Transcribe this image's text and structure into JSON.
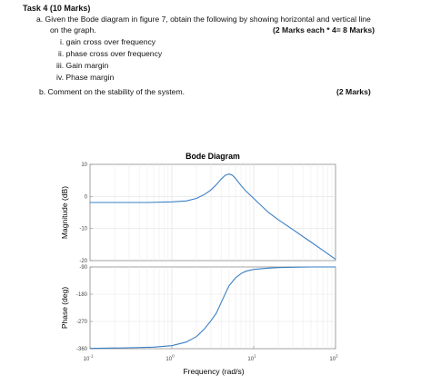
{
  "task": {
    "heading": "Task 4 (10 Marks)",
    "item_a_line1": "a. Given the Bode diagram in figure 7, obtain the following by showing horizontal and vertical line",
    "item_a_line2": "on the graph.",
    "item_a_marks": "(2 Marks each * 4= 8 Marks)",
    "sub_items": [
      "i. gain cross over frequency",
      "ii. phase cross over frequency",
      "iii. Gain margin",
      "iv. Phase margin"
    ],
    "item_b": "b.   Comment on the stability of the system.",
    "item_b_marks": "(2 Marks)"
  },
  "chart_data": {
    "type": "line",
    "title": "Bode Diagram",
    "xlabel": "Frequency  (rad/s)",
    "x_scale": "log",
    "xlim": [
      0.1,
      100
    ],
    "x_ticks": [
      {
        "base": "10",
        "exp": "-1"
      },
      {
        "base": "10",
        "exp": "0"
      },
      {
        "base": "10",
        "exp": "1"
      },
      {
        "base": "10",
        "exp": "2"
      }
    ],
    "grid": true,
    "line_color": "#3a7fc4",
    "panels": [
      {
        "name": "magnitude",
        "ylabel": "Magnitude (dB)",
        "ylim": [
          -20,
          10
        ],
        "y_ticks": [
          "10",
          "0",
          "-10",
          "-20"
        ],
        "series": [
          {
            "x": [
              0.1,
              0.5,
              1.0,
              1.5,
              2.0,
              2.5,
              3.0,
              3.5,
              4.0,
              4.5,
              5.0,
              5.5,
              6.0,
              7.0,
              8.0,
              10.0,
              15.0,
              20.0,
              30.0,
              50.0,
              70.0,
              100.0
            ],
            "y": [
              -1.9,
              -1.9,
              -1.7,
              -1.4,
              -0.6,
              0.6,
              2.0,
              3.7,
              5.4,
              6.6,
              7.0,
              6.6,
              5.6,
              3.4,
              1.7,
              -0.6,
              -4.9,
              -7.3,
              -10.3,
              -14.2,
              -16.8,
              -19.6
            ]
          }
        ]
      },
      {
        "name": "phase",
        "ylabel": "Phase (deg)",
        "ylim": [
          -360,
          -90
        ],
        "y_ticks": [
          "-90",
          "-180",
          "-270",
          "-360"
        ],
        "series": [
          {
            "x": [
              0.1,
              0.3,
              0.6,
              1.0,
              1.5,
              2.0,
              2.5,
              3.0,
              3.5,
              4.0,
              4.5,
              5.0,
              6.0,
              7.0,
              8.0,
              10.0,
              15.0,
              20.0,
              30.0,
              50.0,
              70.0,
              100.0
            ],
            "y": [
              -359,
              -357,
              -355,
              -350,
              -338,
              -320,
              -295,
              -268,
              -242,
              -208,
              -178,
              -152,
              -126,
              -112,
              -104,
              -98,
              -94,
              -92,
              -91,
              -90,
              -90,
              -90
            ]
          }
        ]
      }
    ]
  }
}
